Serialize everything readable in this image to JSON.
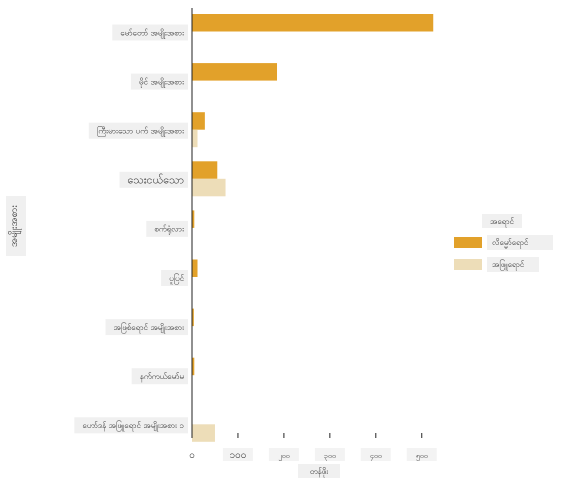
{
  "chart_data": {
    "type": "bar",
    "orientation": "horizontal",
    "title": "",
    "xlabel": "တန်ဖိုး",
    "ylabel": "အမျိုးအစား",
    "categories": [
      "မော်တော် အမျိုးအစား",
      "မိုင် အမျိုးအစား",
      "ကြီးမားသော ပက် အမျိုးအစား",
      "သေးငယ်သော",
      "စက်ရုံလား",
      "ပူပြင်",
      "အဖြစ်ရောင် အမျိုးအစား",
      "နက်ကယ်မော်မ",
      "ဟော်ဒန် အဖြူရောင် အမျိုးအစား ၁"
    ],
    "series": [
      {
        "name": "လိမ္မော်ရောင်",
        "color": "#E2A12A",
        "values": [
          525,
          185,
          28,
          55,
          5,
          12,
          4,
          5,
          0
        ]
      },
      {
        "name": "အဖြူရောင်",
        "color": "#EDDDB8",
        "values": [
          0,
          0,
          12,
          73,
          0,
          0,
          0,
          0,
          50
        ]
      }
    ],
    "xlim": [
      0,
      550
    ],
    "xticks": [
      0,
      100,
      200,
      300,
      400,
      500
    ],
    "xtick_labels": [
      "၀",
      "၁၀၀",
      "၂၀၀",
      "၃၀၀",
      "၄၀၀",
      "၅၀၀"
    ],
    "legend": {
      "title": "အရောင်",
      "position": "right"
    },
    "grid": false
  }
}
